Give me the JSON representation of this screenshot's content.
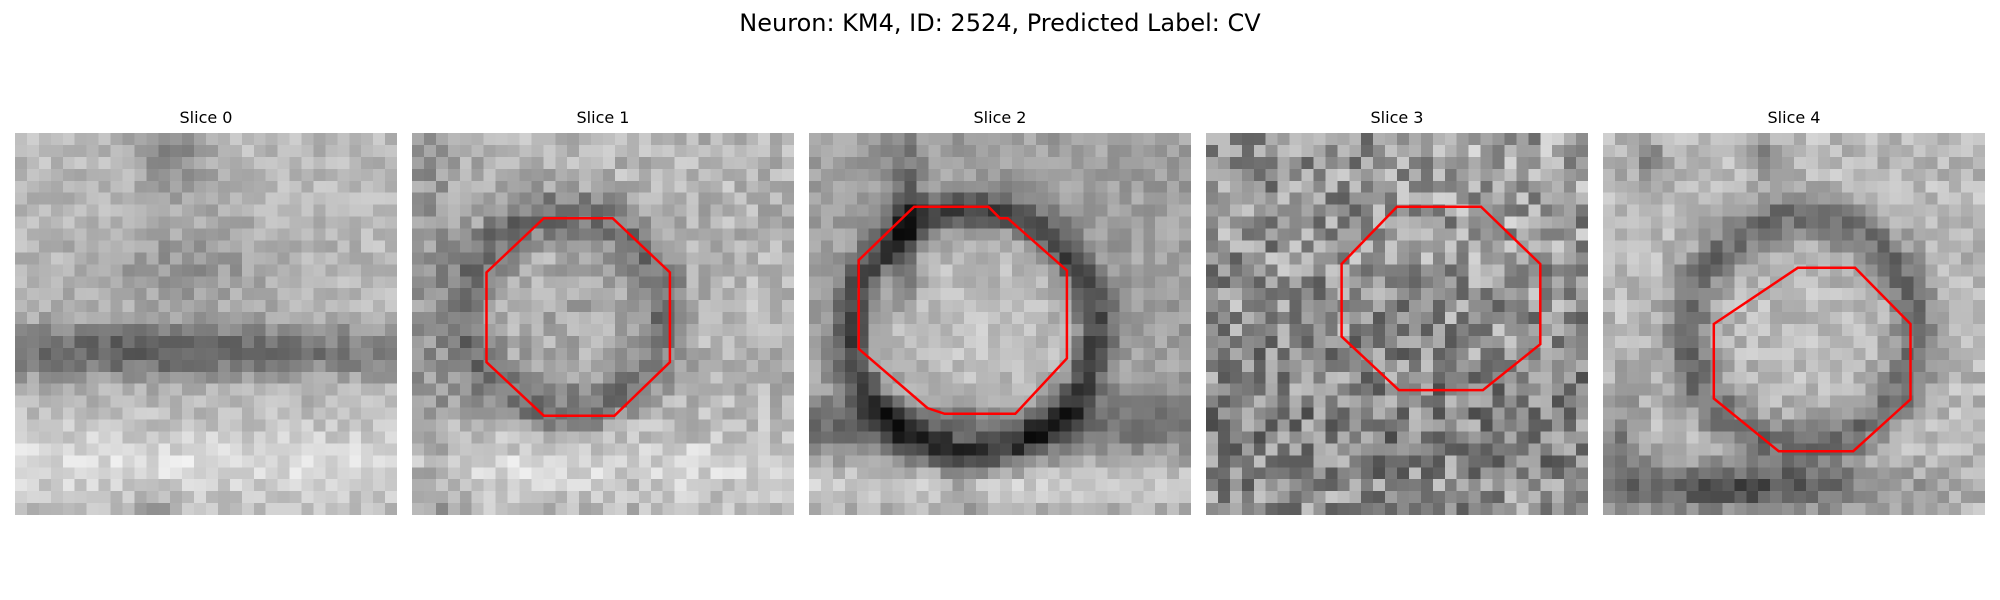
{
  "figure": {
    "title": "Neuron: KM4, ID: 2524, Predicted Label: CV"
  },
  "colors": {
    "roi_outline": "#ff0000",
    "image_colormap": "grayscale"
  },
  "slices": [
    {
      "label": "Slice 0",
      "roi_visible": false,
      "texture": "dark horizontal band across the middle, light band below"
    },
    {
      "label": "Slice 1",
      "roi_visible": true,
      "texture": "circular cell body with a dark ring"
    },
    {
      "label": "Slice 2",
      "roi_visible": true,
      "texture": "large bright cell body with dark surrounding membrane"
    },
    {
      "label": "Slice 3",
      "roi_visible": true,
      "texture": "noisy speckled texture"
    },
    {
      "label": "Slice 4",
      "roi_visible": true,
      "texture": "cell body with dark ring, dark band at bottom"
    }
  ]
}
